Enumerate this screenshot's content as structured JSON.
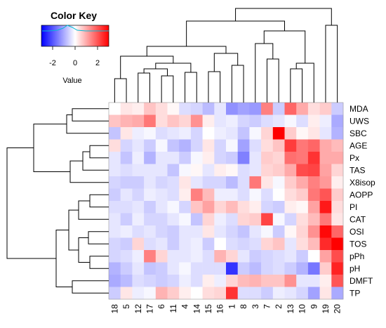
{
  "chart_data": {
    "type": "heatmap",
    "title": "",
    "color_key": {
      "title": "Color Key",
      "xlabel": "Value",
      "ticks": [
        "-2",
        "0",
        "2"
      ],
      "range": [
        -3,
        3
      ],
      "colors": {
        "low": "#0000ff",
        "mid": "#ffffff",
        "high": "#ff0000"
      }
    },
    "columns": [
      "18",
      "5",
      "12",
      "17",
      "6",
      "11",
      "4",
      "14",
      "15",
      "16",
      "1",
      "8",
      "3",
      "7",
      "2",
      "13",
      "10",
      "9",
      "19",
      "20"
    ],
    "rows": [
      "MDA",
      "UWS",
      "SBC",
      "AGE",
      "Px",
      "TAS",
      "X8isop",
      "AOPP",
      "PI",
      "CAT",
      "OSI",
      "TOS",
      "pPh",
      "pH",
      "DMFT",
      "TP"
    ],
    "values": [
      [
        0.0,
        0.3,
        0.2,
        0.7,
        0.4,
        0.1,
        -0.4,
        -0.5,
        -0.8,
        -0.3,
        -1.3,
        -1.1,
        -1.2,
        1.5,
        -0.6,
        1.8,
        1.0,
        0.4,
        0.6,
        -0.6
      ],
      [
        0.7,
        0.9,
        1.0,
        1.6,
        0.4,
        0.7,
        0.5,
        1.3,
        0.2,
        -0.3,
        -0.2,
        -0.5,
        -0.6,
        -0.4,
        -0.3,
        -0.1,
        -0.4,
        0.2,
        -0.2,
        -1.0
      ],
      [
        -0.7,
        0.3,
        -0.2,
        -0.1,
        -0.4,
        -0.3,
        -0.2,
        -0.5,
        0.0,
        -0.2,
        -0.3,
        -0.7,
        -0.1,
        0.5,
        3.0,
        0.6,
        0.1,
        0.3,
        -0.3,
        -0.9
      ],
      [
        0.4,
        -0.5,
        -0.3,
        -0.6,
        -0.1,
        -0.7,
        -0.9,
        -0.5,
        0.3,
        -0.5,
        -0.1,
        -1.1,
        -0.4,
        0.4,
        0.7,
        2.3,
        1.6,
        1.8,
        1.0,
        0.8
      ],
      [
        -0.3,
        -0.7,
        -0.2,
        -0.9,
        -0.3,
        -0.3,
        -0.6,
        -0.1,
        0.2,
        -0.5,
        -0.6,
        -1.5,
        -0.3,
        0.6,
        0.5,
        1.7,
        1.6,
        2.4,
        1.0,
        1.0
      ],
      [
        -0.3,
        -0.4,
        -0.3,
        -0.3,
        -0.3,
        -0.7,
        -0.1,
        0.1,
        -0.3,
        0.2,
        0.1,
        -0.4,
        -0.3,
        0.5,
        0.6,
        1.0,
        2.1,
        2.2,
        1.1,
        0.5
      ],
      [
        -0.5,
        -0.6,
        -0.6,
        -0.3,
        -0.5,
        -0.4,
        0.3,
        -0.3,
        -0.5,
        -0.5,
        -0.8,
        -0.4,
        1.6,
        0.3,
        -0.1,
        0.6,
        1.0,
        1.5,
        1.2,
        0.2
      ],
      [
        -0.6,
        -0.3,
        -0.5,
        -0.2,
        -0.3,
        -0.4,
        0.2,
        1.5,
        0.8,
        -0.2,
        -0.2,
        -0.4,
        -0.1,
        -0.4,
        0.0,
        0.4,
        0.6,
        1.6,
        2.0,
        0.6
      ],
      [
        -0.4,
        -0.4,
        -0.3,
        -0.6,
        -0.3,
        -0.1,
        -0.5,
        0.7,
        1.1,
        0.5,
        0.8,
        0.4,
        0.2,
        -0.5,
        -0.6,
        0.2,
        0.1,
        1.1,
        2.7,
        0.4
      ],
      [
        -0.3,
        -0.6,
        -0.2,
        -0.5,
        -0.5,
        -0.3,
        -0.1,
        -0.7,
        0.5,
        -0.2,
        -0.4,
        0.5,
        0.6,
        2.2,
        -0.1,
        -0.5,
        0.4,
        0.8,
        1.6,
        0.3
      ],
      [
        -0.3,
        -0.2,
        -0.4,
        -0.3,
        -0.5,
        -0.6,
        -0.3,
        -0.3,
        0.3,
        -0.3,
        -0.5,
        -0.7,
        -0.3,
        -0.1,
        -0.6,
        0.1,
        0.5,
        1.3,
        2.9,
        1.8
      ],
      [
        -0.5,
        -0.6,
        0.5,
        -0.4,
        -0.3,
        -0.6,
        -0.3,
        -0.2,
        -0.6,
        0.0,
        -0.4,
        -0.5,
        -0.4,
        0.5,
        0.7,
        -0.3,
        0.4,
        0.8,
        2.5,
        3.0
      ],
      [
        -0.5,
        -0.4,
        -0.2,
        1.5,
        0.5,
        -0.3,
        -0.3,
        -0.2,
        -0.4,
        0.9,
        0.5,
        -0.3,
        -0.6,
        -0.5,
        -0.4,
        -0.3,
        -0.6,
        0.0,
        1.1,
        2.1
      ],
      [
        -0.9,
        -0.6,
        -0.3,
        -0.7,
        -0.6,
        -0.3,
        -0.1,
        -0.4,
        -0.4,
        -0.4,
        -2.4,
        -0.6,
        -0.8,
        -0.5,
        -0.4,
        -0.6,
        -0.9,
        -1.6,
        0.6,
        2.6
      ],
      [
        -1.0,
        -0.8,
        -0.4,
        -0.5,
        -0.6,
        -0.5,
        -0.2,
        -0.4,
        0.2,
        -0.2,
        0.5,
        0.8,
        0.9,
        0.7,
        0.7,
        1.3,
        -0.3,
        -0.3,
        0.2,
        2.0
      ],
      [
        -0.6,
        0.3,
        -0.2,
        -0.1,
        0.9,
        0.6,
        0.2,
        0.0,
        0.4,
        0.5,
        2.4,
        -0.4,
        -0.4,
        -0.6,
        -0.2,
        -0.3,
        -0.5,
        -1.1,
        0.3,
        -1.0
      ]
    ]
  }
}
